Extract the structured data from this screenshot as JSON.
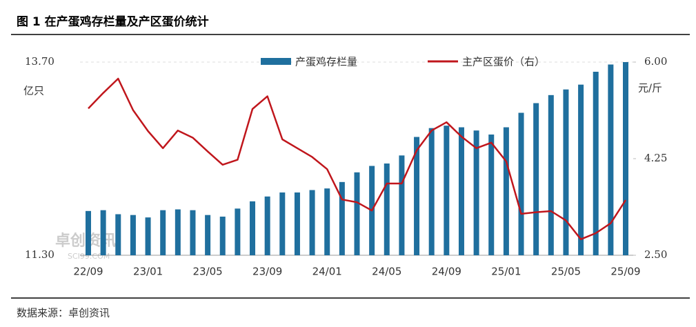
{
  "chart_data": {
    "type": "bar-line",
    "title": "图 1  在产蛋鸡存栏量及产区蛋价统计",
    "source": "数据来源：卓创资讯",
    "watermark": "卓创资讯",
    "watermark_sub": "SCI99.COM",
    "ylabel": "亿只",
    "y2label": "元/斤",
    "categories": [
      "22/09",
      null,
      null,
      null,
      "23/01",
      null,
      null,
      null,
      "23/05",
      null,
      null,
      null,
      "23/09",
      null,
      null,
      null,
      "24/01",
      null,
      null,
      null,
      "24/05",
      null,
      null,
      null,
      "24/09",
      null,
      null,
      null,
      "25/01",
      null,
      null,
      null,
      "25/05",
      null,
      null,
      null,
      "25/09"
    ],
    "ylim": [
      11.3,
      13.7
    ],
    "yticks": [
      {
        "value": 11.3,
        "label": "11.30"
      },
      {
        "value": 13.7,
        "label": "13.70"
      }
    ],
    "y2lim": [
      2.5,
      6.0
    ],
    "y2ticks": [
      {
        "value": 2.5,
        "label": "2.50"
      },
      {
        "value": 4.25,
        "label": "4.25"
      },
      {
        "value": 6.0,
        "label": "6.00"
      }
    ],
    "series": [
      {
        "name": "产蛋鸡存栏量",
        "kind": "bar",
        "color": "#1f6f9e",
        "values": [
          11.85,
          11.86,
          11.81,
          11.8,
          11.77,
          11.86,
          11.87,
          11.86,
          11.8,
          11.78,
          11.88,
          11.97,
          12.03,
          12.08,
          12.08,
          12.11,
          12.13,
          12.21,
          12.33,
          12.41,
          12.44,
          12.54,
          12.77,
          12.88,
          12.91,
          12.89,
          12.85,
          12.8,
          12.89,
          13.07,
          13.19,
          13.29,
          13.36,
          13.42,
          13.58,
          13.67,
          13.7
        ]
      },
      {
        "name": "主产区蛋价（右）",
        "kind": "line",
        "axis": "y2",
        "color": "#c0161c",
        "values": [
          5.16,
          5.44,
          5.7,
          5.13,
          4.75,
          4.44,
          4.76,
          4.63,
          4.38,
          4.14,
          4.23,
          5.15,
          5.38,
          4.6,
          4.44,
          4.28,
          4.06,
          3.51,
          3.46,
          3.31,
          3.8,
          3.8,
          4.4,
          4.76,
          4.91,
          4.65,
          4.44,
          4.54,
          4.2,
          3.25,
          3.28,
          3.3,
          3.13,
          2.79,
          2.9,
          3.08,
          3.5
        ]
      }
    ]
  }
}
